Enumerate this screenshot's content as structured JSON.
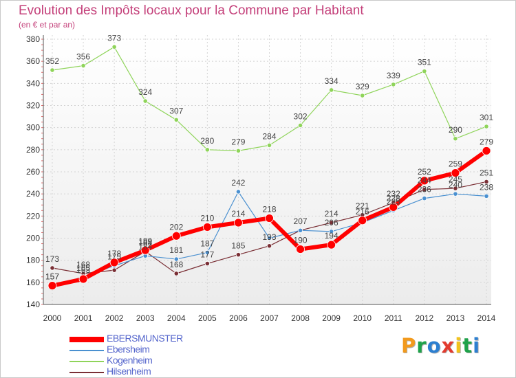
{
  "chart_data": {
    "type": "line",
    "title": "Evolution des Impôts locaux pour la Commune par Habitant",
    "subtitle": "(en € et par an)",
    "xlabel": "",
    "ylabel": "",
    "x": [
      "2000",
      "2001",
      "2002",
      "2003",
      "2004",
      "2005",
      "2006",
      "2007",
      "2008",
      "2009",
      "2010",
      "2011",
      "2012",
      "2013",
      "2014"
    ],
    "ylim": [
      140,
      380
    ],
    "yticks": [
      140,
      160,
      180,
      200,
      220,
      240,
      260,
      280,
      300,
      320,
      340,
      360,
      380
    ],
    "grid": true,
    "legend_position": "bottom-left",
    "series": [
      {
        "name": "Kogenheim",
        "color": "#8fd45a",
        "values": [
          352,
          356,
          373,
          324,
          307,
          280,
          279,
          284,
          302,
          334,
          329,
          339,
          351,
          290,
          301
        ]
      },
      {
        "name": "Hilsenheim",
        "color": "#7a2f35",
        "values": [
          173,
          168,
          171,
          188,
          168,
          177,
          185,
          193,
          207,
          214,
          221,
          232,
          244,
          245,
          251
        ]
      },
      {
        "name": "Ebersheim",
        "color": "#4a90d0",
        "values": [
          157,
          165,
          175,
          184,
          181,
          187,
          242,
          200,
          207,
          206,
          214,
          225,
          236,
          240,
          238
        ]
      },
      {
        "name": "EBERSMUNSTER",
        "color": "#ff0000",
        "values": [
          157,
          163,
          178,
          189,
          202,
          210,
          214,
          218,
          190,
          194,
          216,
          228,
          252,
          259,
          279
        ]
      }
    ],
    "data_labels": [
      {
        "series": "Kogenheim",
        "labels": [
          "352",
          "356",
          "373",
          "324",
          "307",
          "280",
          "279",
          "284",
          "302",
          "334",
          "329",
          "339",
          "351",
          "290",
          "301"
        ]
      },
      {
        "series": "Hilsenheim",
        "labels": [
          "173",
          "168",
          "",
          "188",
          "168",
          "177",
          "185",
          "193",
          "207",
          "214",
          "221",
          "232",
          "244",
          "245",
          "251"
        ]
      },
      {
        "series": "Ebersheim",
        "labels": [
          "157",
          "165",
          "175",
          "184",
          "181",
          "187",
          "242",
          "",
          "",
          "206",
          "",
          "225",
          "236",
          "240",
          "238"
        ]
      },
      {
        "series": "EBERSMUNSTER",
        "labels": [
          "157",
          "163",
          "178",
          "189",
          "202",
          "210",
          "214",
          "218",
          "190",
          "194",
          "216",
          "228",
          "252",
          "259",
          "279"
        ]
      }
    ]
  },
  "legend": {
    "items": [
      {
        "label": "EBERSMUNSTER",
        "color": "#ff0000"
      },
      {
        "label": "Ebersheim",
        "color": "#4a90d0"
      },
      {
        "label": "Kogenheim",
        "color": "#8fd45a"
      },
      {
        "label": "Hilsenheim",
        "color": "#7a2f35"
      }
    ]
  },
  "logo": {
    "letters": [
      "P",
      "r",
      "o",
      "x",
      "i",
      "t",
      "i"
    ],
    "colors": [
      "#f29a1d",
      "#1fa24a",
      "#2c7fd0",
      "#e33b2f",
      "#f2c31b",
      "#1fa24a",
      "#2c7fd0"
    ]
  }
}
